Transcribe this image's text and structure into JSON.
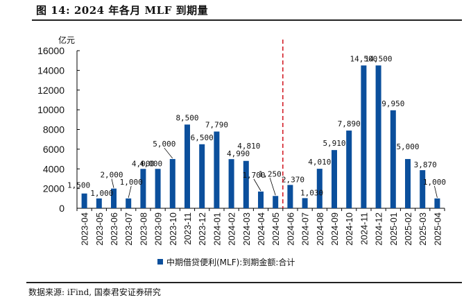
{
  "figure": {
    "title": "图 14:  2024 年各月 MLF 到期量",
    "source": "数据来源: iFind, 国泰君安证券研究"
  },
  "chart_data": {
    "type": "bar",
    "title": "2024 年各月 MLF 到期量",
    "ylabel": "亿元",
    "xlabel": "",
    "ylim": [
      0,
      16000
    ],
    "yticks": [
      0,
      2000,
      4000,
      6000,
      8000,
      10000,
      12000,
      14000,
      16000
    ],
    "ytick_labels": [
      "0",
      "2000",
      "4000",
      "6000",
      "8000",
      "10000",
      "12000",
      "14000",
      "16000"
    ],
    "grid": false,
    "legend_position": "bottom",
    "categories": [
      "2023-04",
      "2023-05",
      "2023-06",
      "2023-07",
      "2023-08",
      "2023-09",
      "2023-10",
      "2023-11",
      "2023-12",
      "2024-01",
      "2024-02",
      "2024-03",
      "2024-04",
      "2024-05",
      "2024-06",
      "2024-07",
      "2024-08",
      "2024-09",
      "2024-10",
      "2024-11",
      "2024-12",
      "2025-01",
      "2025-02",
      "2025-03",
      "2025-04"
    ],
    "series": [
      {
        "name": "中期借贷便利(MLF):到期金额:合计",
        "color": "#0B4F9C",
        "values": [
          1500,
          1000,
          2000,
          1000,
          4000,
          4000,
          5000,
          8500,
          6500,
          7790,
          4990,
          4810,
          1700,
          1250,
          2370,
          1030,
          4010,
          5910,
          7890,
          14500,
          14500,
          9950,
          5000,
          3870,
          1000
        ],
        "data_labels": [
          "1,500",
          "1,000",
          "2,000",
          "1,000",
          "4,000",
          "4,000",
          "5,000",
          "8,500",
          "6,500",
          "7,790",
          "4,990",
          "4,810",
          "1,700",
          "1,250",
          "2,370",
          "1,030",
          "4,010",
          "5,910",
          "7,890",
          "14,500",
          "14,500",
          "9,950",
          "5,000",
          "3,870",
          "1,000"
        ]
      }
    ],
    "annotations": [
      {
        "type": "vertical-dashed-line",
        "between": [
          "2024-05",
          "2024-06"
        ],
        "color": "#D0121B"
      }
    ]
  }
}
